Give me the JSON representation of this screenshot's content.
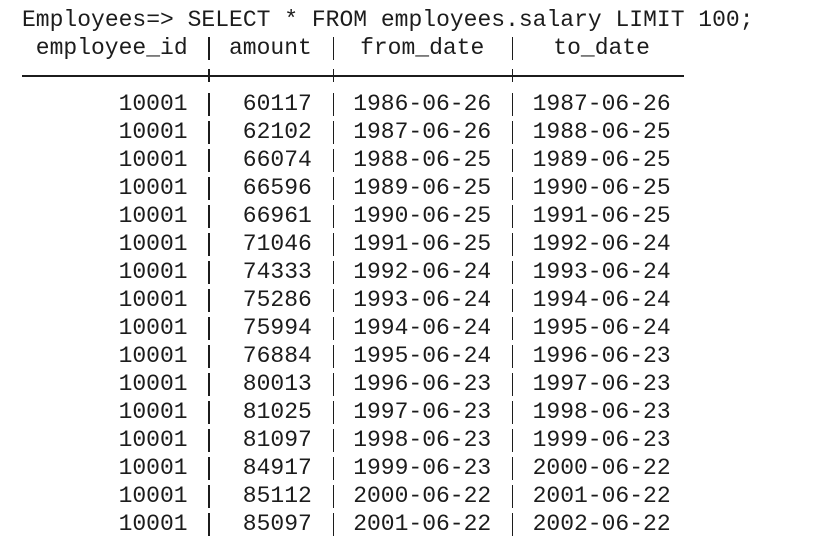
{
  "prompt": "Employees=> SELECT * FROM employees.salary LIMIT 100;",
  "table": {
    "header": [
      "employee_id",
      "amount",
      "from_date",
      "to_date"
    ],
    "rows": [
      [
        10001,
        60117,
        "1986-06-26",
        "1987-06-26"
      ],
      [
        10001,
        62102,
        "1987-06-26",
        "1988-06-25"
      ],
      [
        10001,
        66074,
        "1988-06-25",
        "1989-06-25"
      ],
      [
        10001,
        66596,
        "1989-06-25",
        "1990-06-25"
      ],
      [
        10001,
        66961,
        "1990-06-25",
        "1991-06-25"
      ],
      [
        10001,
        71046,
        "1991-06-25",
        "1992-06-24"
      ],
      [
        10001,
        74333,
        "1992-06-24",
        "1993-06-24"
      ],
      [
        10001,
        75286,
        "1993-06-24",
        "1994-06-24"
      ],
      [
        10001,
        75994,
        "1994-06-24",
        "1995-06-24"
      ],
      [
        10001,
        76884,
        "1995-06-24",
        "1996-06-23"
      ],
      [
        10001,
        80013,
        "1996-06-23",
        "1997-06-23"
      ],
      [
        10001,
        81025,
        "1997-06-23",
        "1998-06-23"
      ],
      [
        10001,
        81097,
        "1998-06-23",
        "1999-06-23"
      ],
      [
        10001,
        84917,
        "1999-06-23",
        "2000-06-22"
      ],
      [
        10001,
        85112,
        "2000-06-22",
        "2001-06-22"
      ],
      [
        10001,
        85097,
        "2001-06-22",
        "2002-06-22"
      ]
    ]
  }
}
